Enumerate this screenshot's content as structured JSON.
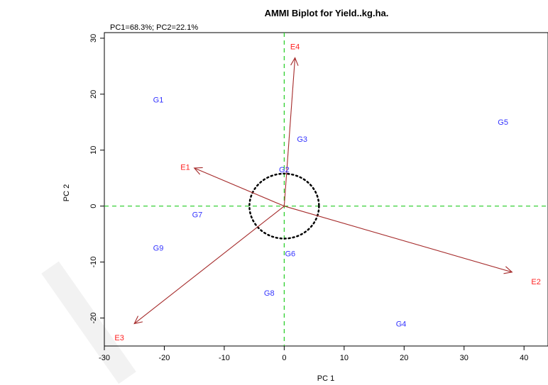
{
  "chart_data": {
    "type": "scatter",
    "title": "AMMI Biplot for Yield..kg.ha.",
    "subtitle": "PC1=68.3%; PC2=22.1%",
    "xlabel": "PC 1",
    "ylabel": "PC 2",
    "xlim": [
      -30,
      44
    ],
    "ylim": [
      -25,
      31
    ],
    "xticks": [
      -30,
      -20,
      -10,
      0,
      10,
      20,
      30,
      40
    ],
    "yticks": [
      -20,
      -10,
      0,
      10,
      20,
      30
    ],
    "genotypes": [
      {
        "label": "G1",
        "x": -21,
        "y": 19
      },
      {
        "label": "G2",
        "x": 0,
        "y": 6.5
      },
      {
        "label": "G3",
        "x": 3,
        "y": 12
      },
      {
        "label": "G4",
        "x": 19.5,
        "y": -21
      },
      {
        "label": "G5",
        "x": 36.5,
        "y": 15
      },
      {
        "label": "G6",
        "x": 1,
        "y": -8.5
      },
      {
        "label": "G7",
        "x": -14.5,
        "y": -1.5
      },
      {
        "label": "G8",
        "x": -2.5,
        "y": -15.5
      },
      {
        "label": "G9",
        "x": -21,
        "y": -7.5
      }
    ],
    "environments": [
      {
        "label": "E1",
        "x": -15,
        "y": 6.8,
        "label_x": -16.5,
        "label_y": 7
      },
      {
        "label": "E2",
        "x": 38,
        "y": -11.8,
        "label_x": 42,
        "label_y": -13.5
      },
      {
        "label": "E3",
        "x": -25,
        "y": -21,
        "label_x": -27.5,
        "label_y": -23.5
      },
      {
        "label": "E4",
        "x": 1.8,
        "y": 26.5,
        "label_x": 1.8,
        "label_y": 28.5
      }
    ],
    "circle_radius": 5.8,
    "reference_lines": {
      "x": 0,
      "y": 0
    },
    "colors": {
      "genotype": "#3333ff",
      "environment": "#ff2222",
      "vector": "#a52a2a",
      "reference": "#22cc22",
      "circle": "#000000"
    },
    "grid": false
  }
}
